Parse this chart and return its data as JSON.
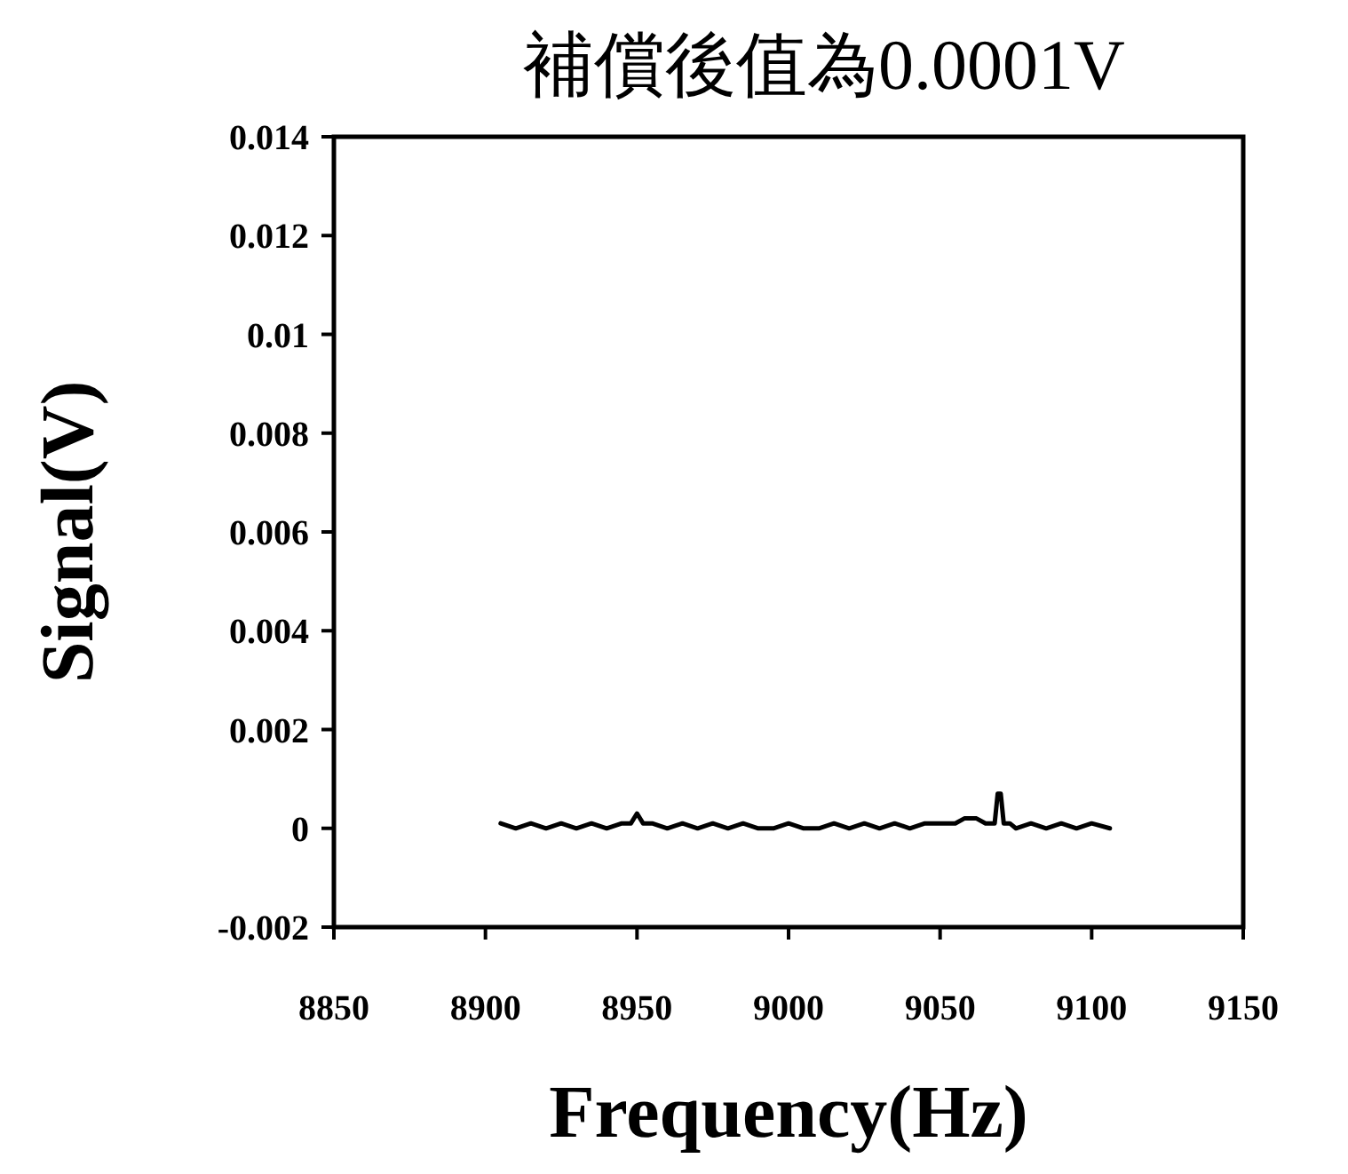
{
  "chart_data": {
    "type": "line",
    "title": "補償後值為0.0001V",
    "xlabel": "Frequency(Hz)",
    "ylabel": "Signal(V)",
    "x": [
      8905,
      8910,
      8915,
      8920,
      8925,
      8930,
      8935,
      8940,
      8945,
      8948,
      8950,
      8952,
      8955,
      8960,
      8965,
      8970,
      8975,
      8980,
      8985,
      8990,
      8995,
      9000,
      9005,
      9010,
      9015,
      9020,
      9025,
      9030,
      9035,
      9040,
      9045,
      9050,
      9055,
      9058,
      9062,
      9065,
      9068,
      9069,
      9070,
      9071,
      9073,
      9075,
      9080,
      9085,
      9090,
      9095,
      9100,
      9106
    ],
    "series": [
      {
        "color": "#000000",
        "values": [
          0.0001,
          0,
          0.0001,
          0,
          0.0001,
          0,
          0.0001,
          0,
          0.0001,
          0.0001,
          0.0003,
          0.0001,
          0.0001,
          0,
          0.0001,
          0,
          0.0001,
          0,
          0.0001,
          0,
          0,
          0.0001,
          0,
          0,
          0.0001,
          0,
          0.0001,
          0,
          0.0001,
          0,
          0.0001,
          0.0001,
          0.0001,
          0.0002,
          0.0002,
          0.0001,
          0.0001,
          0.0007,
          0.0007,
          0.0001,
          0.0001,
          0,
          0.0001,
          0,
          0.0001,
          0,
          0.0001,
          0
        ]
      }
    ],
    "xlim": [
      8850,
      9150
    ],
    "xticks": [
      8850,
      8900,
      8950,
      9000,
      9050,
      9100,
      9150
    ],
    "ylim": [
      -0.002,
      0.014
    ],
    "yticks": [
      -0.002,
      0,
      0.002,
      0.004,
      0.006,
      0.008,
      0.01,
      0.012,
      0.014
    ],
    "grid": false,
    "marker": "none",
    "line_style": "solid"
  }
}
